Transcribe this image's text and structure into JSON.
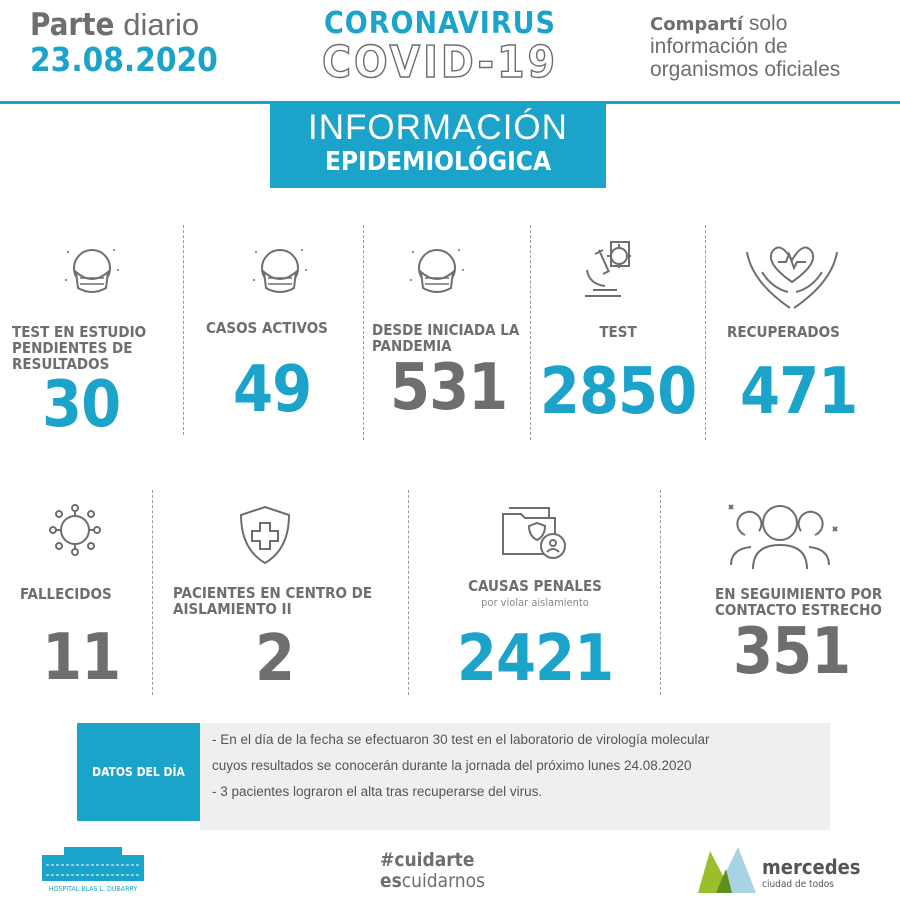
{
  "header": {
    "parte_bold": "Parte",
    "parte_rest": "diario",
    "date": "23.08.2020",
    "title1": "CORONAVIRUS",
    "title2": "COVID-19",
    "share_bold": "Compartí",
    "share_rest": "solo",
    "share_l2": "información de",
    "share_l3": "organismos oficiales"
  },
  "banner": {
    "line1": "INFORMACIÓN",
    "line2": "EPIDEMIOLÓGICA"
  },
  "colors": {
    "accent": "#1ba3c9",
    "gray": "#6d6e70"
  },
  "stats_row1": [
    {
      "label": "TEST EN ESTUDIO PENDIENTES DE RESULTADOS",
      "value": "30",
      "icon": "face-mask-icon",
      "color": "blue"
    },
    {
      "label": "CASOS ACTIVOS",
      "value": "49",
      "icon": "face-mask-icon",
      "color": "blue"
    },
    {
      "label": "DESDE INICIADA LA PANDEMIA",
      "value": "531",
      "icon": "face-mask-icon",
      "color": "gray"
    },
    {
      "label": "TEST",
      "value": "2850",
      "icon": "microscope-icon",
      "color": "blue"
    },
    {
      "label": "RECUPERADOS",
      "value": "471",
      "icon": "hands-heart-icon",
      "color": "blue"
    }
  ],
  "stats_row2": [
    {
      "label": "FALLECIDOS",
      "value": "11",
      "icon": "virus-icon",
      "color": "gray"
    },
    {
      "label": "PACIENTES EN CENTRO DE AISLAMIENTO II",
      "value": "2",
      "icon": "shield-cross-icon",
      "color": "gray"
    },
    {
      "label": "CAUSAS PENALES",
      "sublabel": "por violar aislamiento",
      "value": "2421",
      "icon": "folder-user-icon",
      "color": "blue"
    },
    {
      "label": "EN SEGUIMIENTO POR CONTACTO ESTRECHO",
      "value": "351",
      "icon": "people-contact-icon",
      "color": "gray"
    }
  ],
  "datos": {
    "title": "DATOS DEL DÍA",
    "lines": [
      "- En el día de la fecha se efectuaron 30 test en el laboratorio de virología molecular",
      "cuyos resultados se conocerán durante la jornada del próximo lunes 24.08.2020",
      "- 3 pacientes lograron el alta tras recuperarse del virus."
    ]
  },
  "footer": {
    "hospital": "HOSPITAL BLAS L. DUBARRY",
    "tag_hash": "#cuidarte",
    "tag_es": "es",
    "tag_rest": "cuidarnos",
    "city": "mercedes",
    "city_sub": "ciudad de todos"
  }
}
